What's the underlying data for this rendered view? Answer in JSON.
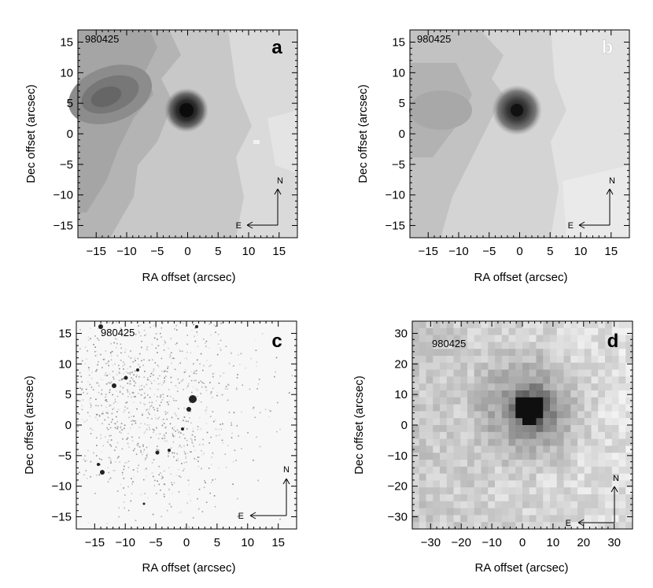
{
  "panels": [
    {
      "id": "a",
      "object_label": "980425",
      "panel_letter": "a",
      "xlabel": "RA offset (arcsec)",
      "ylabel": "Dec offset (arcsec)",
      "xticks": [
        "−15",
        "−10",
        "−5",
        "0",
        "5",
        "10",
        "15"
      ],
      "yticks": [
        "15",
        "10",
        "5",
        "0",
        "−5",
        "−10",
        "−15"
      ],
      "compass_n": "N",
      "compass_e": "E",
      "style": "smooth"
    },
    {
      "id": "b",
      "object_label": "980425",
      "panel_letter": "b",
      "xlabel": "RA offset (arcsec)",
      "ylabel": "Dec offset (arcsec)",
      "xticks": [
        "−15",
        "−10",
        "−5",
        "0",
        "5",
        "10",
        "15"
      ],
      "yticks": [
        "15",
        "10",
        "5",
        "0",
        "−5",
        "−10",
        "−15"
      ],
      "compass_n": "N",
      "compass_e": "E",
      "style": "smooth-light"
    },
    {
      "id": "c",
      "object_label": "980425",
      "panel_letter": "c",
      "xlabel": "RA offset (arcsec)",
      "ylabel": "Dec offset (arcsec)",
      "xticks": [
        "−15",
        "−10",
        "−5",
        "0",
        "5",
        "10",
        "15"
      ],
      "yticks": [
        "15",
        "10",
        "5",
        "0",
        "−5",
        "−10",
        "−15"
      ],
      "compass_n": "N",
      "compass_e": "E",
      "style": "speckle"
    },
    {
      "id": "d",
      "object_label": "980425",
      "panel_letter": "d",
      "xlabel": "RA offset (arcsec)",
      "ylabel": "Dec offset (arcsec)",
      "xticks": [
        "−30",
        "−20",
        "−10",
        "0",
        "10",
        "20",
        "30"
      ],
      "yticks": [
        "30",
        "20",
        "10",
        "0",
        "−10",
        "−20",
        "−30"
      ],
      "compass_n": "N",
      "compass_e": "E",
      "style": "pixel"
    }
  ]
}
